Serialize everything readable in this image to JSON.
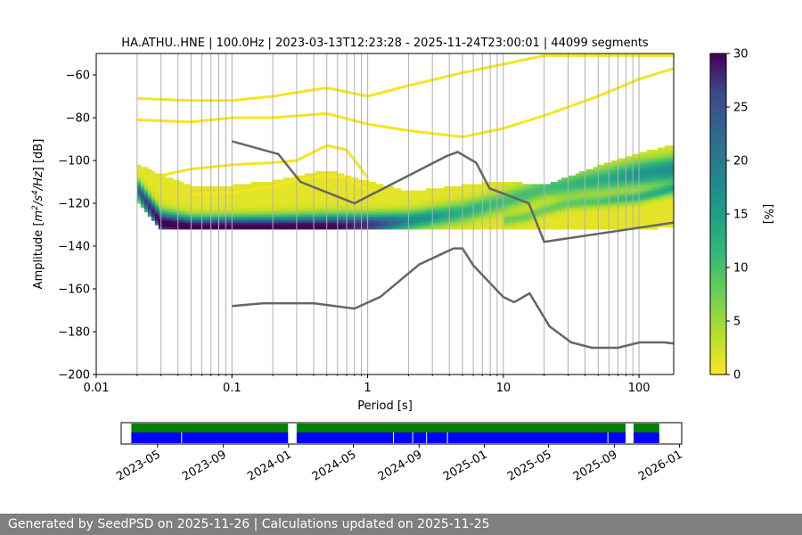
{
  "chart_data": [
    {
      "type": "heatmap",
      "title": "HA.ATHU..HNE | 100.0Hz | 2023-03-13T12:23:28 - 2025-11-24T23:00:01 | 44099 segments",
      "xlabel": "Period [s]",
      "ylabel_parts": [
        "Amplitude [",
        "m",
        "2",
        "/s",
        "4",
        "/Hz",
        "] [dB]"
      ],
      "xscale": "log",
      "xlim": [
        0.01,
        180
      ],
      "ylim": [
        -200,
        -50
      ],
      "xticks": [
        {
          "value": 0.01,
          "label": "0.01"
        },
        {
          "value": 0.1,
          "label": "0.1"
        },
        {
          "value": 1,
          "label": "1"
        },
        {
          "value": 10,
          "label": "10"
        },
        {
          "value": 100,
          "label": "100"
        }
      ],
      "yticks": [
        -60,
        -80,
        -100,
        -120,
        -140,
        -160,
        -180,
        -200
      ],
      "period_gridlines": [
        0.02,
        0.03,
        0.04,
        0.05,
        0.06,
        0.07,
        0.08,
        0.09,
        0.1,
        0.2,
        0.3,
        0.4,
        0.5,
        0.6,
        0.7,
        0.8,
        0.9,
        1,
        2,
        3,
        4,
        5,
        6,
        7,
        8,
        9,
        10,
        20,
        30,
        40,
        50,
        60,
        70,
        80,
        90,
        100
      ],
      "colorbar": {
        "label": "[%]",
        "min": 0,
        "max": 30,
        "ticks": [
          0,
          5,
          10,
          15,
          20,
          25,
          30
        ],
        "colormap": "viridis_r"
      },
      "psd_body": {
        "period": [
          0.02,
          0.03,
          0.05,
          0.1,
          0.2,
          0.5,
          1,
          2,
          5,
          10,
          20,
          50,
          100,
          180
        ],
        "upper_db": [
          -102,
          -107,
          -112,
          -112,
          -110,
          -105,
          -110,
          -115,
          -112,
          -110,
          -112,
          -103,
          -97,
          -93
        ],
        "lower_db": [
          -118,
          -132,
          -132,
          -132,
          -132,
          -132,
          -132,
          -132,
          -132,
          -131,
          -132,
          -132,
          -132,
          -130
        ],
        "mode_db": [
          -113,
          -129,
          -131,
          -131,
          -131,
          -131,
          -130,
          -128,
          -124,
          -119,
          -113,
          -109,
          -106,
          -104
        ],
        "mode_percent": [
          20,
          30,
          30,
          30,
          30,
          30,
          25,
          15,
          10,
          8,
          8,
          10,
          13,
          14
        ]
      },
      "psd_secondary": {
        "period": [
          10,
          15,
          20,
          30,
          50,
          100,
          180
        ],
        "mode_db": [
          -128,
          -126,
          -123,
          -120,
          -119,
          -117,
          -113
        ]
      },
      "outlier_curves": [
        {
          "period": [
            0.02,
            0.05,
            0.1,
            0.2,
            0.5,
            1,
            2,
            5,
            10,
            20,
            50,
            100,
            180
          ],
          "db": [
            -71,
            -72,
            -72,
            -70,
            -66,
            -70,
            -65,
            -59,
            -55,
            -51,
            -51,
            -51,
            -51
          ]
        },
        {
          "period": [
            0.02,
            0.05,
            0.1,
            0.2,
            0.5,
            1,
            2,
            5,
            10,
            20,
            50,
            100,
            180
          ],
          "db": [
            -81,
            -82,
            -80,
            -80,
            -78,
            -83,
            -86,
            -89,
            -85,
            -79,
            -70,
            -62,
            -57
          ]
        },
        {
          "period": [
            0.03,
            0.05,
            0.1,
            0.2,
            0.3,
            0.5,
            0.7,
            1
          ],
          "db": [
            -107,
            -104,
            -102,
            -101,
            -100,
            -93,
            -95,
            -108
          ]
        },
        {
          "period": [
            0.05,
            0.1,
            0.2,
            0.3,
            0.5,
            0.7,
            1
          ],
          "db": [
            -116,
            -115,
            -112,
            -109,
            -107,
            -108,
            -114
          ]
        }
      ],
      "noise_models": [
        {
          "period": [
            0.1,
            0.22,
            0.32,
            0.8,
            3.8,
            4.6,
            6.3,
            7.9,
            15.4,
            20,
            180
          ],
          "db": [
            -91,
            -97,
            -110,
            -120,
            -98,
            -96,
            -101,
            -113,
            -120,
            -138,
            -129
          ]
        },
        {
          "period": [
            0.1,
            0.17,
            0.4,
            0.8,
            1.24,
            2.4,
            4.3,
            5,
            6,
            10,
            12,
            15.6,
            21.9,
            31.6,
            45,
            70,
            101,
            154,
            180
          ],
          "db": [
            -168,
            -166.7,
            -166.7,
            -169.2,
            -163.7,
            -148.6,
            -141.1,
            -141.1,
            -149,
            -163.8,
            -166.2,
            -162.1,
            -177.5,
            -185,
            -187.5,
            -187.5,
            -185,
            -185,
            -185.5
          ]
        }
      ]
    },
    {
      "type": "timeline",
      "time_range": [
        "2023-03-13",
        "2025-11-24"
      ],
      "axis_range": [
        "2023-02-22",
        "2026-01-05"
      ],
      "xticks": [
        "2023-05",
        "2023-09",
        "2024-01",
        "2024-05",
        "2024-09",
        "2025-01",
        "2025-05",
        "2025-09",
        "2026-01"
      ],
      "top_row_color": "#008000",
      "bottom_row_color": "#0000ff",
      "coverage": [
        {
          "start": "2023-03-13",
          "end": "2023-12-31"
        },
        {
          "start": "2024-01-16",
          "end": "2025-09-22"
        },
        {
          "start": "2025-10-07",
          "end": "2025-11-24"
        }
      ],
      "bottom_row_gaps": [
        "2023-06-15",
        "2024-07-15",
        "2024-08-20",
        "2024-09-15",
        "2024-10-24",
        "2025-08-20"
      ]
    }
  ],
  "footer": {
    "text": "Generated by SeedPSD on 2025-11-26 | Calculations updated on 2025-11-25"
  }
}
